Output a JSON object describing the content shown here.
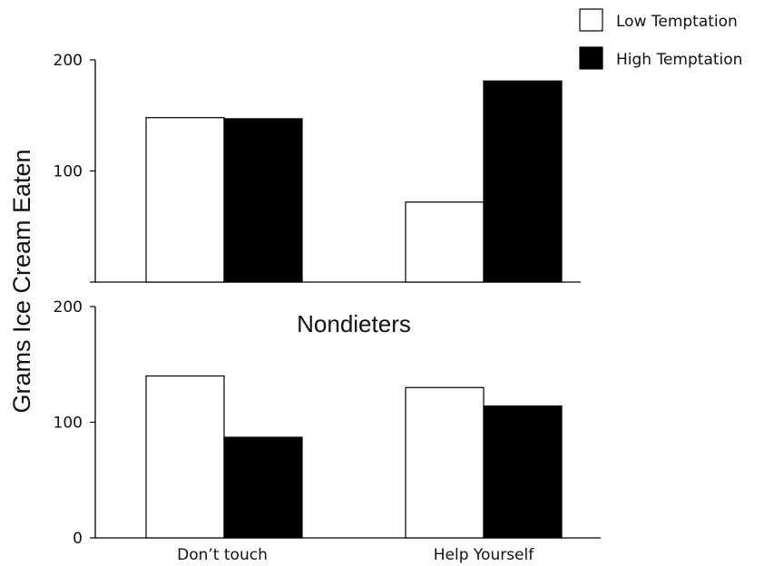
{
  "chart_data": {
    "type": "bar",
    "ylabel": "Grams Ice Cream Eaten",
    "categories": [
      "Don’t touch",
      "Help Yourself"
    ],
    "legend": [
      {
        "name": "Low Temptation",
        "color": "#ffffff"
      },
      {
        "name": "High Temptation",
        "color": "#000000"
      }
    ],
    "panels": [
      {
        "title": "",
        "ylim": [
          0,
          200
        ],
        "yticks": [
          "",
          "100",
          "200"
        ],
        "series": [
          {
            "name": "Low Temptation",
            "values": [
              148,
              72
            ]
          },
          {
            "name": "High Temptation",
            "values": [
              147,
              181
            ]
          }
        ]
      },
      {
        "title": "Nondieters",
        "ylim": [
          0,
          200
        ],
        "yticks": [
          "0",
          "100",
          "200"
        ],
        "series": [
          {
            "name": "Low Temptation",
            "values": [
              140,
              130
            ]
          },
          {
            "name": "High Temptation",
            "values": [
              87,
              114
            ]
          }
        ]
      }
    ]
  }
}
